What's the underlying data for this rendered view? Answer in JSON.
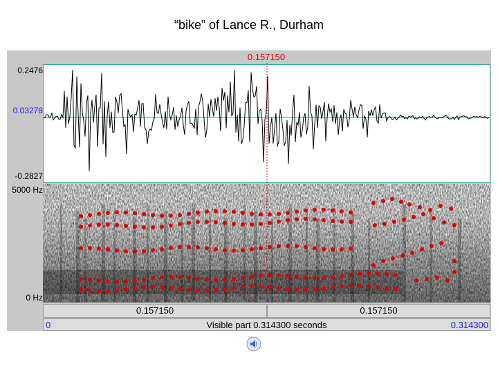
{
  "title": "“bike” of Lance R., Durham",
  "cursor_time": "0.157150",
  "waveform": {
    "y_max": "0.2476",
    "y_center": "0.03278",
    "y_min": "-0.2827"
  },
  "spectrogram": {
    "y_top": "5000 Hz",
    "y_bottom": "0 Hz"
  },
  "ruler": {
    "left_duration": "0.157150",
    "right_duration": "0.157150"
  },
  "visible_bar": {
    "start": "0",
    "label": "Visible part 0.314300 seconds",
    "end": "0.314300"
  },
  "icons": {
    "play": "speaker-icon"
  },
  "colors": {
    "cursor": "#e00000",
    "formant": "#e00000",
    "axis_blue": "#1a1aff",
    "panel_border": "#2aa8a8"
  }
}
